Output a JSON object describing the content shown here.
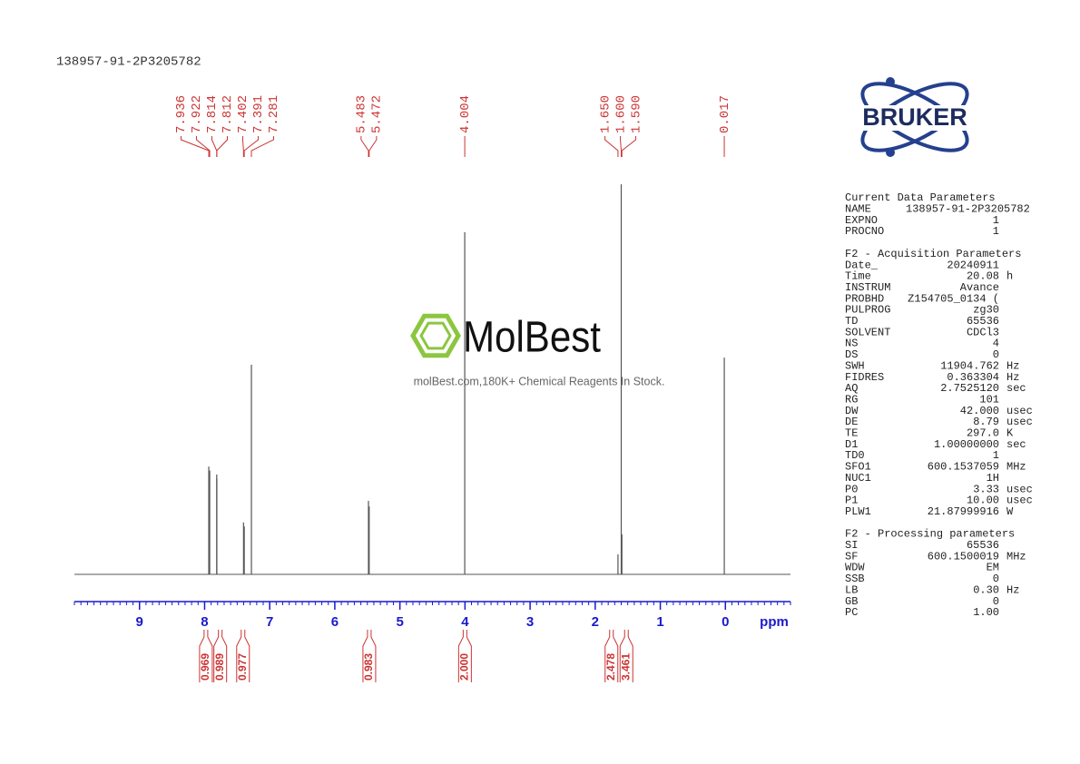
{
  "chart_data": {
    "type": "nmr",
    "title": "138957-91-2P3205782",
    "x": [
      7.936,
      7.922,
      7.814,
      7.812,
      7.402,
      7.391,
      7.281,
      5.483,
      5.472,
      4.004,
      {
        "value": 1.65,
        "label": "1.650"
      },
      {
        "value": 1.6,
        "label": "1.600"
      },
      {
        "value": 1.59,
        "label": "1.590"
      },
      0.017
    ],
    "values": [
      27,
      26,
      25,
      24,
      13,
      12,
      52.5,
      18.4,
      17,
      85.7,
      5,
      97.7,
      10,
      54.3
    ],
    "color": "#555555",
    "label_color": "#cc3333",
    "axis_color": "#1a1acc",
    "xlim": [
      10,
      -1
    ],
    "xticks": [
      9,
      8,
      7,
      6,
      5,
      4,
      3,
      2,
      1,
      0
    ],
    "xlabel": "ppm",
    "ylim": [
      0,
      100
    ],
    "integrals": [
      {
        "ppm": 7.98,
        "value": 0.969
      },
      {
        "ppm": 7.76,
        "value": 0.989
      },
      {
        "ppm": 7.41,
        "value": 0.977
      },
      {
        "ppm": 5.47,
        "value": 0.983
      },
      {
        "ppm": 4.0,
        "value": 2,
        "label": "2.000"
      },
      {
        "ppm": 1.75,
        "value": 2.478
      },
      {
        "ppm": 1.52,
        "value": 3.461
      }
    ]
  },
  "logo": "BRUKER",
  "watermark": {
    "brand": "MolBest",
    "tagline": "molBest.com,180K+ Chemical Reagents In Stock."
  },
  "parameters": [
    {
      "title": "Current Data Parameters",
      "rows": [
        [
          "NAME",
          "138957-91-2P3205782"
        ],
        [
          "EXPNO",
          "1"
        ],
        [
          "PROCNO",
          "1"
        ]
      ]
    },
    {
      "title": "F2 - Acquisition Parameters",
      "rows": [
        [
          "Date_",
          "20240911"
        ],
        [
          "Time",
          "20.08",
          "h"
        ],
        [
          "INSTRUM",
          "Avance"
        ],
        [
          "PROBHD",
          "Z154705_0134 ("
        ],
        [
          "PULPROG",
          "zg30"
        ],
        [
          "TD",
          "65536"
        ],
        [
          "SOLVENT",
          "CDCl3"
        ],
        [
          "NS",
          "4"
        ],
        [
          "DS",
          "0"
        ],
        [
          "SWH",
          "11904.762",
          "Hz"
        ],
        [
          "FIDRES",
          "0.363304",
          "Hz"
        ],
        [
          "AQ",
          "2.7525120",
          "sec"
        ],
        [
          "RG",
          "101"
        ],
        [
          "DW",
          "42.000",
          "usec"
        ],
        [
          "DE",
          "8.79",
          "usec"
        ],
        [
          "TE",
          "297.0",
          "K"
        ],
        [
          "D1",
          "1.00000000",
          "sec"
        ],
        [
          "TD0",
          "1"
        ],
        [
          "SFO1",
          "600.1537059",
          "MHz"
        ],
        [
          "NUC1",
          "1H"
        ],
        [
          "P0",
          "3.33",
          "usec"
        ],
        [
          "P1",
          "10.00",
          "usec"
        ],
        [
          "PLW1",
          "21.87999916",
          "W"
        ]
      ]
    },
    {
      "title": "F2 - Processing parameters",
      "rows": [
        [
          "SI",
          "65536"
        ],
        [
          "SF",
          "600.1500019",
          "MHz"
        ],
        [
          "WDW",
          "EM"
        ],
        [
          "SSB",
          "0"
        ],
        [
          "LB",
          "0.30",
          "Hz"
        ],
        [
          "GB",
          "0"
        ],
        [
          "PC",
          "1.00"
        ]
      ]
    }
  ]
}
